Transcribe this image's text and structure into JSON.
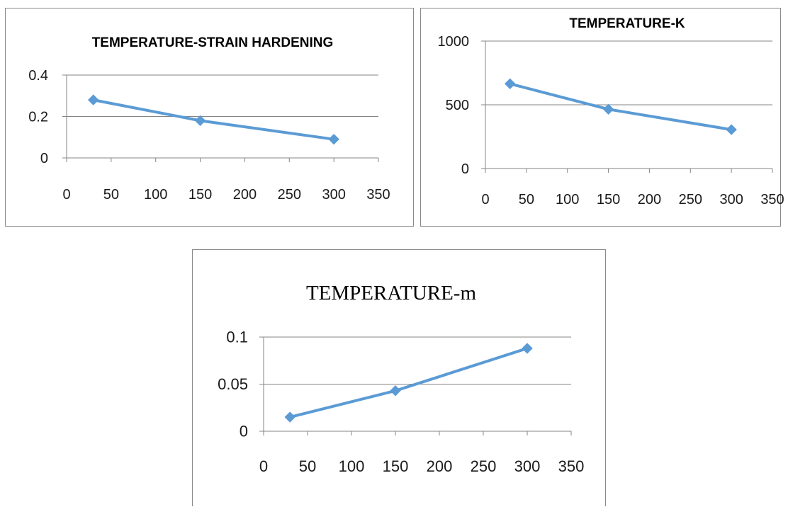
{
  "chart_data": [
    {
      "type": "line",
      "title": "TEMPERATURE-STRAIN HARDENING",
      "xlabel": "",
      "ylabel": "",
      "xlim": [
        0,
        350
      ],
      "ylim": [
        0,
        0.4
      ],
      "xticks": [
        "0",
        "50",
        "100",
        "150",
        "200",
        "250",
        "300",
        "350"
      ],
      "yticks": [
        "0",
        "0.2",
        "0.4"
      ],
      "grid": true,
      "series": [
        {
          "color": "#5b9bd5",
          "marker": "diamond",
          "x": [
            30,
            150,
            300
          ],
          "y": [
            0.28,
            0.18,
            0.09
          ]
        }
      ]
    },
    {
      "type": "line",
      "title": "TEMPERATURE-K",
      "xlabel": "",
      "ylabel": "",
      "xlim": [
        0,
        350
      ],
      "ylim": [
        0,
        1000
      ],
      "xticks": [
        "0",
        "50",
        "100",
        "150",
        "200",
        "250",
        "300",
        "350"
      ],
      "yticks": [
        "0",
        "500",
        "1000"
      ],
      "grid": true,
      "series": [
        {
          "color": "#5b9bd5",
          "marker": "diamond",
          "x": [
            30,
            150,
            300
          ],
          "y": [
            665,
            465,
            305
          ]
        }
      ]
    },
    {
      "type": "line",
      "title": "TEMPERATURE-m",
      "xlabel": "",
      "ylabel": "",
      "xlim": [
        0,
        350
      ],
      "ylim": [
        0,
        0.1
      ],
      "xticks": [
        "0",
        "50",
        "100",
        "150",
        "200",
        "250",
        "300",
        "350"
      ],
      "yticks": [
        "0",
        "0.05",
        "0.1"
      ],
      "grid": true,
      "series": [
        {
          "color": "#5b9bd5",
          "marker": "diamond",
          "x": [
            30,
            150,
            300
          ],
          "y": [
            0.015,
            0.043,
            0.088
          ]
        }
      ]
    }
  ]
}
